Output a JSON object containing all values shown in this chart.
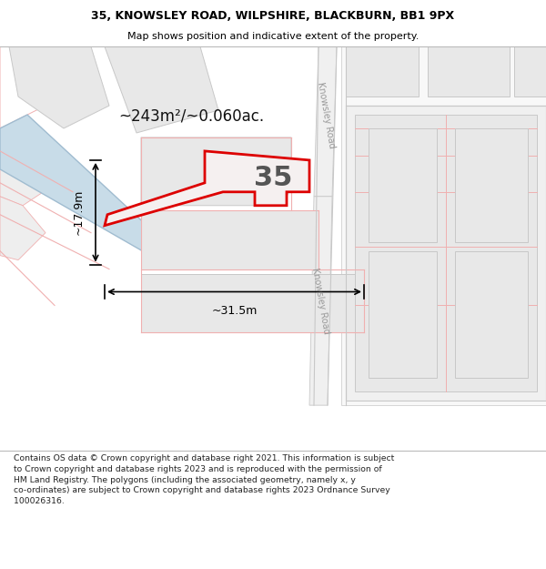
{
  "title_line1": "35, KNOWSLEY ROAD, WILPSHIRE, BLACKBURN, BB1 9PX",
  "title_line2": "Map shows position and indicative extent of the property.",
  "area_text": "~243m²/~0.060ac.",
  "width_text": "~31.5m",
  "height_text": "~17.9m",
  "number_text": "35",
  "footer_text": "Contains OS data © Crown copyright and database right 2021. This information is subject to Crown copyright and database rights 2023 and is reproduced with the permission of HM Land Registry. The polygons (including the associated geometry, namely x, y co-ordinates) are subject to Crown copyright and database rights 2023 Ordnance Survey 100026316.",
  "map_bg": "#ffffff",
  "plot_fill_gray": "#e8e8e8",
  "plot_fill_white": "#f5f5f5",
  "stroke_light": "#f0b0b0",
  "stroke_gray": "#c8c8c8",
  "stroke_highlight": "#dd0000",
  "water_fill": "#c8dce8",
  "water_stroke": "#a0bcd0",
  "title_bg": "#ffffff",
  "footer_bg": "#ffffff",
  "dim_color": "#333333",
  "road_label_color": "#999999",
  "area_text_color": "#111111",
  "number_color": "#555555"
}
